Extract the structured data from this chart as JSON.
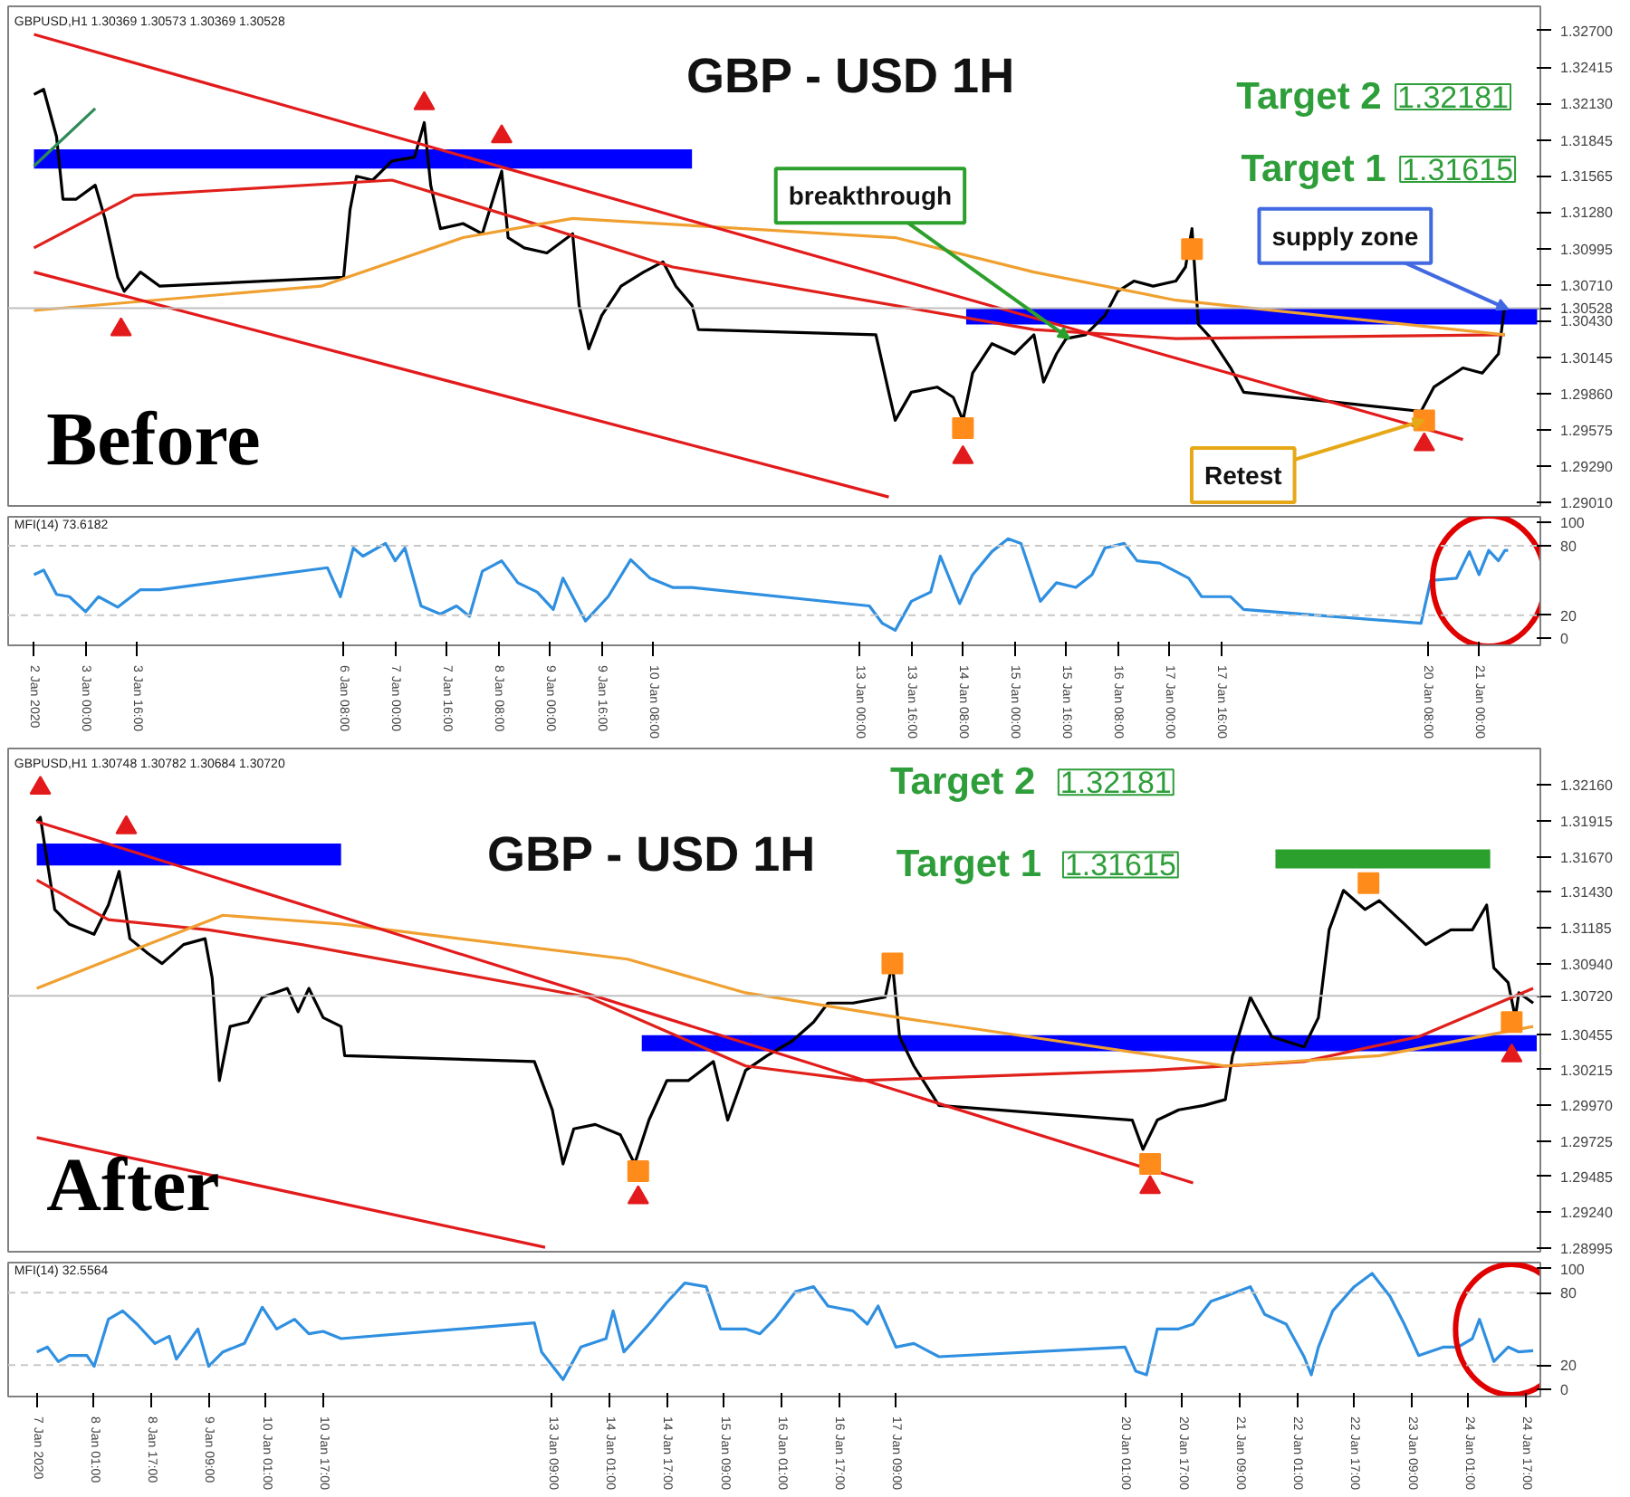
{
  "chart_data": [
    {
      "type": "line",
      "title": "GBP - USD 1H",
      "xlim": [
        "2020-01-02T00:00",
        "2020-01-21T19:00"
      ],
      "ylim": [
        1.2898,
        1.3289
      ],
      "tick_labels": "y",
      "yticks": [
        {
          "value": 1.327,
          "label": "1.32700"
        },
        {
          "value": 1.32415,
          "label": "1.32415"
        },
        {
          "value": 1.3213,
          "label": "1.32130"
        },
        {
          "value": 1.31845,
          "label": "1.31845"
        },
        {
          "value": 1.31565,
          "label": "1.31565"
        },
        {
          "value": 1.3128,
          "label": "1.31280"
        },
        {
          "value": 1.30995,
          "label": "1.30995"
        },
        {
          "value": 1.3071,
          "label": "1.30710"
        },
        {
          "value": 1.30528,
          "label": "1.30528"
        },
        {
          "value": 1.3043,
          "label": "1.30430"
        },
        {
          "value": 1.30145,
          "label": "1.30145"
        },
        {
          "value": 1.2986,
          "label": "1.29860"
        },
        {
          "value": 1.29575,
          "label": "1.29575"
        },
        {
          "value": 1.2929,
          "label": "1.29290"
        },
        {
          "value": 1.2901,
          "label": "1.29010"
        }
      ],
      "ref_lines": [
        {
          "axis": "y",
          "value": 1.30528,
          "color": "#c0c0c0"
        }
      ],
      "annotations": [
        "GBPUSD,H1 1.30369 1.30573 1.30369 1.30528",
        "Before",
        "Target 2",
        "1.32181",
        "Target 1",
        "1.31615",
        {
          "text": "breakthrough",
          "x": "2020-01-15T17:00",
          "y": 1.3029
        },
        {
          "text": "supply zone",
          "x": "2020-01-21T09:00",
          "y": 1.3052
        },
        {
          "text": "Retest",
          "x": "2020-01-20T07:00",
          "y": 1.2965
        }
      ],
      "series": [
        {
          "color": "#000000",
          "x": [
            "2020-01-02T08:00",
            "2020-01-02T11:00",
            "2020-01-02T15:00",
            "2020-01-02T17:00",
            "2020-01-02T21:00",
            "2020-01-03T03:00",
            "2020-01-03T06:00",
            "2020-01-03T10:00",
            "2020-01-03T12:00",
            "2020-01-03T17:00",
            "2020-01-03T23:00",
            "2020-01-06T08:00",
            "2020-01-06T10:00",
            "2020-01-06T12:00",
            "2020-01-06T17:00",
            "2020-01-06T23:00",
            "2020-01-07T06:00",
            "2020-01-07T09:00",
            "2020-01-07T11:00",
            "2020-01-07T14:00",
            "2020-01-07T21:00",
            "2020-01-08T03:00",
            "2020-01-08T09:00",
            "2020-01-08T11:00",
            "2020-01-08T16:00",
            "2020-01-08T23:00",
            "2020-01-09T07:00",
            "2020-01-09T09:00",
            "2020-01-09T12:00",
            "2020-01-09T16:00",
            "2020-01-09T22:00",
            "2020-01-10T05:00",
            "2020-01-10T11:00",
            "2020-01-10T15:00",
            "2020-01-10T20:00",
            "2020-01-10T22:00",
            "2020-01-13T05:00",
            "2020-01-13T09:00",
            "2020-01-13T11:00",
            "2020-01-13T16:00",
            "2020-01-14T00:00",
            "2020-01-14T05:00",
            "2020-01-14T08:00",
            "2020-01-14T11:00",
            "2020-01-14T17:00",
            "2020-01-15T00:00",
            "2020-01-15T06:00",
            "2020-01-15T09:00",
            "2020-01-15T13:00",
            "2020-01-15T16:00",
            "2020-01-15T22:00",
            "2020-01-16T04:00",
            "2020-01-16T08:00",
            "2020-01-16T13:00",
            "2020-01-16T19:00",
            "2020-01-17T02:00",
            "2020-01-17T05:00",
            "2020-01-17T07:00",
            "2020-01-17T09:00",
            "2020-01-17T13:00",
            "2020-01-17T19:00",
            "2020-01-17T23:00",
            "2020-01-20T06:00",
            "2020-01-20T10:00",
            "2020-01-20T19:00",
            "2020-01-21T01:00",
            "2020-01-21T06:00",
            "2020-01-21T08:00"
          ],
          "values": [
            1.322,
            1.3224,
            1.3187,
            1.3138,
            1.3138,
            1.3149,
            1.3123,
            1.3077,
            1.3066,
            1.3081,
            1.307,
            1.3077,
            1.313,
            1.3156,
            1.3153,
            1.3168,
            1.3171,
            1.3198,
            1.3149,
            1.3115,
            1.3119,
            1.3111,
            1.316,
            1.3108,
            1.31,
            1.3096,
            1.3111,
            1.3055,
            1.3021,
            1.3047,
            1.307,
            1.3081,
            1.3089,
            1.307,
            1.3055,
            1.3036,
            1.3032,
            1.2987,
            1.2965,
            1.2987,
            1.2991,
            1.2983,
            1.2965,
            1.3002,
            1.3025,
            1.3017,
            1.3032,
            1.2995,
            1.3017,
            1.3029,
            1.3032,
            1.3047,
            1.3066,
            1.3074,
            1.307,
            1.3074,
            1.3085,
            1.3115,
            1.304,
            1.3029,
            1.3006,
            1.2987,
            1.2972,
            1.2991,
            1.3006,
            1.3002,
            1.3017,
            1.3055
          ]
        },
        {
          "color": "#e0201b",
          "x": [
            "2020-01-02T08:00",
            "2020-01-03T15:00",
            "2020-01-06T23:00",
            "2020-01-08T14:00",
            "2020-01-10T14:00",
            "2020-01-15T06:00",
            "2020-01-17T02:00",
            "2020-01-21T08:00"
          ],
          "values": [
            1.31,
            1.3141,
            1.3153,
            1.3123,
            1.3085,
            1.3036,
            1.3029,
            1.3032
          ]
        },
        {
          "color": "#f0a030",
          "x": [
            "2020-01-02T08:00",
            "2020-01-06T01:00",
            "2020-01-07T21:00",
            "2020-01-09T07:00",
            "2020-01-13T11:00",
            "2020-01-15T06:00",
            "2020-01-17T02:00",
            "2020-01-21T08:00"
          ],
          "values": [
            1.3051,
            1.307,
            1.3108,
            1.3123,
            1.3108,
            1.3081,
            1.3059,
            1.3032
          ]
        },
        {
          "color": "#e31a1c",
          "x": [
            "2020-01-02T08:00",
            "2020-01-20T19:00"
          ],
          "values": [
            1.3267,
            1.295
          ]
        },
        {
          "color": "#e31a1c",
          "x": [
            "2020-01-02T08:00",
            "2020-01-13T09:00"
          ],
          "values": [
            1.3081,
            1.2905
          ]
        },
        {
          "color": "#2e8b57",
          "x": [
            "2020-01-02T08:00",
            "2020-01-03T03:00"
          ],
          "values": [
            1.3164,
            1.3209
          ]
        },
        {
          "color": "#0000ff",
          "x": [
            "2020-01-02T08:00",
            "2020-01-10T20:00"
          ],
          "values": [
            null,
            null
          ],
          "lower": [
            1.3162,
            1.3162
          ],
          "upper": [
            1.3177,
            1.3177
          ]
        },
        {
          "color": "#0000ff",
          "x": [
            "2020-01-14T09:00",
            "2020-01-21T18:00"
          ],
          "values": [
            null,
            null
          ],
          "lower": [
            1.304,
            1.304
          ],
          "upper": [
            1.3053,
            1.3053
          ]
        },
        {
          "type": "scatter",
          "marker": "square",
          "color": "#ff8c1a",
          "x": [
            "2020-01-14T08:00",
            "2020-01-17T07:00",
            "2020-01-20T07:00"
          ],
          "values": [
            1.2959,
            1.3099,
            1.2965
          ]
        },
        {
          "type": "scatter",
          "marker": "triangle",
          "color": "#e31a1c",
          "x": [
            "2020-01-03T11:00",
            "2020-01-14T08:00",
            "2020-01-20T07:00",
            "2020-01-07T09:00",
            "2020-01-08T09:00"
          ],
          "values": [
            1.3036,
            1.2936,
            1.2946,
            1.3213,
            1.3187
          ]
        }
      ]
    },
    {
      "type": "line",
      "xlim": [
        "2020-01-02T00:00",
        "2020-01-21T19:00"
      ],
      "ylim": [
        -6,
        105
      ],
      "yticks": [
        0,
        20,
        80,
        100
      ],
      "xticks": [
        {
          "value": "2020-01-02T08:00",
          "label": "2 Jan 2020"
        },
        {
          "value": "2020-01-03T00:00",
          "label": "3 Jan 00:00"
        },
        {
          "value": "2020-01-03T16:00",
          "label": "3 Jan 16:00"
        },
        {
          "value": "2020-01-06T08:00",
          "label": "6 Jan 08:00"
        },
        {
          "value": "2020-01-07T00:00",
          "label": "7 Jan 00:00"
        },
        {
          "value": "2020-01-07T16:00",
          "label": "7 Jan 16:00"
        },
        {
          "value": "2020-01-08T08:00",
          "label": "8 Jan 08:00"
        },
        {
          "value": "2020-01-09T00:00",
          "label": "9 Jan 00:00"
        },
        {
          "value": "2020-01-09T16:00",
          "label": "9 Jan 16:00"
        },
        {
          "value": "2020-01-10T08:00",
          "label": "10 Jan 08:00"
        },
        {
          "value": "2020-01-13T00:00",
          "label": "13 Jan 00:00"
        },
        {
          "value": "2020-01-13T16:00",
          "label": "13 Jan 16:00"
        },
        {
          "value": "2020-01-14T08:00",
          "label": "14 Jan 08:00"
        },
        {
          "value": "2020-01-15T00:00",
          "label": "15 Jan 00:00"
        },
        {
          "value": "2020-01-15T16:00",
          "label": "15 Jan 16:00"
        },
        {
          "value": "2020-01-16T08:00",
          "label": "16 Jan 08:00"
        },
        {
          "value": "2020-01-17T00:00",
          "label": "17 Jan 00:00"
        },
        {
          "value": "2020-01-17T16:00",
          "label": "17 Jan 16:00"
        },
        {
          "value": "2020-01-20T08:00",
          "label": "20 Jan 08:00"
        },
        {
          "value": "2020-01-21T00:00",
          "label": "21 Jan 00:00"
        }
      ],
      "ref_lines": [
        {
          "axis": "y",
          "value": 20,
          "color": "#c8c8c8",
          "line_style": "dashed"
        },
        {
          "axis": "y",
          "value": 80,
          "color": "#c8c8c8",
          "line_style": "dashed"
        }
      ],
      "annotations": [
        "MFI(14) 73.6182"
      ],
      "series": [
        {
          "color": "#2f8fe0",
          "x": [
            "2020-01-02T08:00",
            "2020-01-02T11:00",
            "2020-01-02T15:00",
            "2020-01-02T19:00",
            "2020-01-03T00:00",
            "2020-01-03T04:00",
            "2020-01-03T10:00",
            "2020-01-03T17:00",
            "2020-01-03T23:00",
            "2020-01-06T03:00",
            "2020-01-06T07:00",
            "2020-01-06T11:00",
            "2020-01-06T14:00",
            "2020-01-06T21:00",
            "2020-01-07T00:00",
            "2020-01-07T03:00",
            "2020-01-07T08:00",
            "2020-01-07T14:00",
            "2020-01-07T19:00",
            "2020-01-07T23:00",
            "2020-01-08T03:00",
            "2020-01-08T09:00",
            "2020-01-08T14:00",
            "2020-01-08T20:00",
            "2020-01-09T01:00",
            "2020-01-09T04:00",
            "2020-01-09T11:00",
            "2020-01-09T18:00",
            "2020-01-10T01:00",
            "2020-01-10T07:00",
            "2020-01-10T14:00",
            "2020-01-10T20:00",
            "2020-01-13T03:00",
            "2020-01-13T07:00",
            "2020-01-13T11:00",
            "2020-01-13T16:00",
            "2020-01-13T22:00",
            "2020-01-14T01:00",
            "2020-01-14T07:00",
            "2020-01-14T11:00",
            "2020-01-14T17:00",
            "2020-01-14T22:00",
            "2020-01-15T02:00",
            "2020-01-15T08:00",
            "2020-01-15T13:00",
            "2020-01-15T19:00",
            "2020-01-16T00:00",
            "2020-01-16T04:00",
            "2020-01-16T10:00",
            "2020-01-16T14:00",
            "2020-01-16T21:00",
            "2020-01-17T06:00",
            "2020-01-17T10:00",
            "2020-01-17T19:00",
            "2020-01-17T23:00",
            "2020-01-20T06:00",
            "2020-01-20T09:00",
            "2020-01-20T17:00",
            "2020-01-20T21:00",
            "2020-01-21T00:00",
            "2020-01-21T03:00",
            "2020-01-21T06:00",
            "2020-01-21T08:00",
            "2020-01-21T09:00"
          ],
          "values": [
            55,
            59,
            38,
            36,
            23,
            36,
            27,
            42,
            42,
            61,
            36,
            78,
            71,
            82,
            67,
            78,
            28,
            21,
            28,
            19,
            58,
            67,
            48,
            40,
            25,
            52,
            15,
            36,
            68,
            52,
            44,
            44,
            28,
            13,
            7,
            32,
            40,
            71,
            30,
            55,
            75,
            86,
            82,
            32,
            48,
            44,
            55,
            78,
            82,
            67,
            65,
            52,
            36,
            36,
            25,
            13,
            50,
            52,
            75,
            55,
            76,
            67,
            76,
            76
          ]
        }
      ]
    },
    {
      "type": "line",
      "title": "GBP - USD 1H",
      "xlim": [
        "2020-01-07T01:00",
        "2020-01-24T21:00"
      ],
      "ylim": [
        1.2897,
        1.3241
      ],
      "tick_labels": "y",
      "yticks": [
        {
          "value": 1.3216,
          "label": "1.32160"
        },
        {
          "value": 1.31915,
          "label": "1.31915"
        },
        {
          "value": 1.3167,
          "label": "1.31670"
        },
        {
          "value": 1.3143,
          "label": "1.31430"
        },
        {
          "value": 1.31185,
          "label": "1.31185"
        },
        {
          "value": 1.3094,
          "label": "1.30940"
        },
        {
          "value": 1.3072,
          "label": "1.30720"
        },
        {
          "value": 1.30455,
          "label": "1.30455"
        },
        {
          "value": 1.30215,
          "label": "1.30215"
        },
        {
          "value": 1.2997,
          "label": "1.29970"
        },
        {
          "value": 1.29725,
          "label": "1.29725"
        },
        {
          "value": 1.29485,
          "label": "1.29485"
        },
        {
          "value": 1.2924,
          "label": "1.29240"
        },
        {
          "value": 1.28995,
          "label": "1.28995"
        }
      ],
      "ref_lines": [
        {
          "axis": "y",
          "value": 1.3072,
          "color": "#c0c0c0"
        }
      ],
      "annotations": [
        "GBPUSD,H1 1.30748 1.30782 1.30684 1.30720",
        "After",
        "Target 2",
        "1.32181",
        "Target 1",
        "1.31615"
      ],
      "series": [
        {
          "color": "#000000",
          "x": [
            "2020-01-07T09:00",
            "2020-01-07T10:00",
            "2020-01-07T14:00",
            "2020-01-07T18:00",
            "2020-01-08T01:00",
            "2020-01-08T05:00",
            "2020-01-08T08:00",
            "2020-01-08T11:00",
            "2020-01-08T16:00",
            "2020-01-08T20:00",
            "2020-01-09T02:00",
            "2020-01-09T08:00",
            "2020-01-09T10:00",
            "2020-01-09T12:00",
            "2020-01-09T15:00",
            "2020-01-09T20:00",
            "2020-01-10T00:00",
            "2020-01-10T07:00",
            "2020-01-10T10:00",
            "2020-01-10T13:00",
            "2020-01-10T17:00",
            "2020-01-10T22:00",
            "2020-01-10T23:00",
            "2020-01-13T04:00",
            "2020-01-13T09:00",
            "2020-01-13T12:00",
            "2020-01-13T15:00",
            "2020-01-13T21:00",
            "2020-01-14T04:00",
            "2020-01-14T08:00",
            "2020-01-14T12:00",
            "2020-01-14T17:00",
            "2020-01-14T23:00",
            "2020-01-15T06:00",
            "2020-01-15T10:00",
            "2020-01-15T15:00",
            "2020-01-15T21:00",
            "2020-01-16T04:00",
            "2020-01-16T10:00",
            "2020-01-16T14:00",
            "2020-01-16T21:00",
            "2020-01-17T06:00",
            "2020-01-17T08:00",
            "2020-01-17T10:00",
            "2020-01-17T14:00",
            "2020-01-17T21:00",
            "2020-01-20T03:00",
            "2020-01-20T06:00",
            "2020-01-20T10:00",
            "2020-01-20T16:00",
            "2020-01-20T23:00",
            "2020-01-21T05:00",
            "2020-01-21T07:00",
            "2020-01-21T12:00",
            "2020-01-21T18:00",
            "2020-01-22T03:00",
            "2020-01-22T07:00",
            "2020-01-22T10:00",
            "2020-01-22T14:00",
            "2020-01-22T20:00",
            "2020-01-23T00:00",
            "2020-01-23T07:00",
            "2020-01-23T13:00",
            "2020-01-23T20:00",
            "2020-01-24T02:00",
            "2020-01-24T06:00",
            "2020-01-24T08:00",
            "2020-01-24T12:00",
            "2020-01-24T14:00",
            "2020-01-24T15:00",
            "2020-01-24T19:00"
          ],
          "values": [
            1.3191,
            1.3194,
            1.3131,
            1.3121,
            1.3114,
            1.3134,
            1.3157,
            1.3111,
            1.3101,
            1.3094,
            1.3107,
            1.3111,
            1.3084,
            1.3014,
            1.3051,
            1.3054,
            1.3071,
            1.3077,
            1.3061,
            1.3077,
            1.3057,
            1.3051,
            1.3031,
            1.3027,
            1.2994,
            1.2957,
            1.2981,
            1.2984,
            1.2977,
            1.2957,
            1.2987,
            1.3014,
            1.3014,
            1.3027,
            1.2987,
            1.3021,
            1.3031,
            1.3041,
            1.3054,
            1.3067,
            1.3067,
            1.3071,
            1.3094,
            1.3044,
            1.3024,
            1.2997,
            1.2987,
            1.2967,
            1.2987,
            1.2994,
            1.2997,
            1.3001,
            1.3031,
            1.3071,
            1.3044,
            1.3037,
            1.3057,
            1.3117,
            1.3144,
            1.3131,
            1.3137,
            1.3121,
            1.3107,
            1.3117,
            1.3117,
            1.3134,
            1.3091,
            1.3081,
            1.3057,
            1.3074,
            1.3067
          ]
        },
        {
          "color": "#e0201b",
          "x": [
            "2020-01-07T09:00",
            "2020-01-08T05:00",
            "2020-01-09T09:00",
            "2020-01-10T11:00",
            "2020-01-13T19:00",
            "2020-01-15T15:00",
            "2020-01-16T23:00",
            "2020-01-20T08:00",
            "2020-01-22T03:00",
            "2020-01-23T11:00",
            "2020-01-24T19:00"
          ],
          "values": [
            1.3151,
            1.3124,
            1.3117,
            1.3107,
            1.3071,
            1.3024,
            1.3014,
            1.3021,
            1.3027,
            1.3044,
            1.3077
          ]
        },
        {
          "color": "#f0a030",
          "x": [
            "2020-01-07T09:00",
            "2020-01-08T16:00",
            "2020-01-09T13:00",
            "2020-01-10T22:00",
            "2020-01-14T06:00",
            "2020-01-15T15:00",
            "2020-01-17T10:00",
            "2020-01-21T05:00",
            "2020-01-23T00:00",
            "2020-01-24T19:00"
          ],
          "values": [
            1.3077,
            1.3107,
            1.3127,
            1.3121,
            1.3097,
            1.3074,
            1.3057,
            1.3024,
            1.3031,
            1.3051
          ]
        },
        {
          "color": "#e31a1c",
          "x": [
            "2020-01-07T09:00",
            "2020-01-20T20:00"
          ],
          "values": [
            1.3191,
            1.2944
          ]
        },
        {
          "color": "#e31a1c",
          "x": [
            "2020-01-07T09:00",
            "2020-01-13T07:00"
          ],
          "values": [
            1.2975,
            1.29
          ]
        },
        {
          "color": "#0000ff",
          "x": [
            "2020-01-07T09:00",
            "2020-01-10T22:00"
          ],
          "values": [
            null,
            null
          ],
          "lower": [
            1.3161,
            1.3161
          ],
          "upper": [
            1.3176,
            1.3176
          ]
        },
        {
          "color": "#0000ff",
          "x": [
            "2020-01-14T10:00",
            "2020-01-24T20:00"
          ],
          "values": [
            null,
            null
          ],
          "lower": [
            1.3034,
            1.3034
          ],
          "upper": [
            1.3045,
            1.3045
          ]
        },
        {
          "color": "#2ca02c",
          "x": [
            "2020-01-21T19:00",
            "2020-01-24T07:00"
          ],
          "values": [
            null,
            null
          ],
          "lower": [
            1.3159,
            1.3159
          ],
          "upper": [
            1.3172,
            1.3172
          ]
        },
        {
          "type": "scatter",
          "marker": "square",
          "color": "#ff8c1a",
          "x": [
            "2020-01-14T09:00",
            "2020-01-17T08:00",
            "2020-01-20T08:00",
            "2020-01-22T21:00",
            "2020-01-24T13:00"
          ],
          "values": [
            1.2952,
            1.3094,
            1.2957,
            1.3149,
            1.3054
          ]
        },
        {
          "type": "scatter",
          "marker": "triangle",
          "color": "#e31a1c",
          "x": [
            "2020-01-07T10:00",
            "2020-01-08T10:00",
            "2020-01-14T09:00",
            "2020-01-20T08:00",
            "2020-01-24T13:00"
          ],
          "values": [
            1.3214,
            1.3187,
            1.2934,
            1.2941,
            1.3031
          ]
        }
      ]
    },
    {
      "type": "line",
      "xlim": [
        "2020-01-07T01:00",
        "2020-01-24T21:00"
      ],
      "ylim": [
        -6,
        105
      ],
      "yticks": [
        0,
        20,
        80,
        100
      ],
      "xticks": [
        {
          "value": "2020-01-07T09:00",
          "label": "7 Jan 2020"
        },
        {
          "value": "2020-01-08T01:00",
          "label": "8 Jan 01:00"
        },
        {
          "value": "2020-01-08T17:00",
          "label": "8 Jan 17:00"
        },
        {
          "value": "2020-01-09T09:00",
          "label": "9 Jan 09:00"
        },
        {
          "value": "2020-01-10T01:00",
          "label": "10 Jan 01:00"
        },
        {
          "value": "2020-01-10T17:00",
          "label": "10 Jan 17:00"
        },
        {
          "value": "2020-01-13T09:00",
          "label": "13 Jan 09:00"
        },
        {
          "value": "2020-01-14T01:00",
          "label": "14 Jan 01:00"
        },
        {
          "value": "2020-01-14T17:00",
          "label": "14 Jan 17:00"
        },
        {
          "value": "2020-01-15T09:00",
          "label": "15 Jan 09:00"
        },
        {
          "value": "2020-01-16T01:00",
          "label": "16 Jan 01:00"
        },
        {
          "value": "2020-01-16T17:00",
          "label": "16 Jan 17:00"
        },
        {
          "value": "2020-01-17T09:00",
          "label": "17 Jan 09:00"
        },
        {
          "value": "2020-01-20T01:00",
          "label": "20 Jan 01:00"
        },
        {
          "value": "2020-01-20T17:00",
          "label": "20 Jan 17:00"
        },
        {
          "value": "2020-01-21T09:00",
          "label": "21 Jan 09:00"
        },
        {
          "value": "2020-01-22T01:00",
          "label": "22 Jan 01:00"
        },
        {
          "value": "2020-01-22T17:00",
          "label": "22 Jan 17:00"
        },
        {
          "value": "2020-01-23T09:00",
          "label": "23 Jan 09:00"
        },
        {
          "value": "2020-01-24T01:00",
          "label": "24 Jan 01:00"
        },
        {
          "value": "2020-01-24T17:00",
          "label": "24 Jan 17:00"
        }
      ],
      "ref_lines": [
        {
          "axis": "y",
          "value": 20,
          "color": "#c8c8c8",
          "line_style": "dashed"
        },
        {
          "axis": "y",
          "value": 80,
          "color": "#c8c8c8",
          "line_style": "dashed"
        }
      ],
      "annotations": [
        "MFI(14) 32.5564"
      ],
      "series": [
        {
          "color": "#2f8fe0",
          "x": [
            "2020-01-07T09:00",
            "2020-01-07T12:00",
            "2020-01-07T15:00",
            "2020-01-07T18:00",
            "2020-01-07T23:00",
            "2020-01-08T01:00",
            "2020-01-08T05:00",
            "2020-01-08T09:00",
            "2020-01-08T13:00",
            "2020-01-08T18:00",
            "2020-01-08T22:00",
            "2020-01-09T00:00",
            "2020-01-09T06:00",
            "2020-01-09T09:00",
            "2020-01-09T13:00",
            "2020-01-09T19:00",
            "2020-01-10T00:00",
            "2020-01-10T04:00",
            "2020-01-10T09:00",
            "2020-01-10T13:00",
            "2020-01-10T17:00",
            "2020-01-10T22:00",
            "2020-01-13T04:00",
            "2020-01-13T06:00",
            "2020-01-13T12:00",
            "2020-01-13T17:00",
            "2020-01-14T00:00",
            "2020-01-14T02:00",
            "2020-01-14T05:00",
            "2020-01-14T12:00",
            "2020-01-14T17:00",
            "2020-01-14T22:00",
            "2020-01-15T04:00",
            "2020-01-15T08:00",
            "2020-01-15T15:00",
            "2020-01-15T19:00",
            "2020-01-15T23:00",
            "2020-01-16T05:00",
            "2020-01-16T10:00",
            "2020-01-16T14:00",
            "2020-01-16T21:00",
            "2020-01-17T01:00",
            "2020-01-17T04:00",
            "2020-01-17T09:00",
            "2020-01-17T14:00",
            "2020-01-17T21:00",
            "2020-01-20T01:00",
            "2020-01-20T04:00",
            "2020-01-20T07:00",
            "2020-01-20T10:00",
            "2020-01-20T16:00",
            "2020-01-20T20:00",
            "2020-01-21T01:00",
            "2020-01-21T05:00",
            "2020-01-21T12:00",
            "2020-01-21T16:00",
            "2020-01-21T22:00",
            "2020-01-22T03:00",
            "2020-01-22T05:00",
            "2020-01-22T07:00",
            "2020-01-22T11:00",
            "2020-01-22T17:00",
            "2020-01-22T22:00",
            "2020-01-23T03:00",
            "2020-01-23T07:00",
            "2020-01-23T11:00",
            "2020-01-23T18:00",
            "2020-01-23T22:00",
            "2020-01-24T02:00",
            "2020-01-24T04:00",
            "2020-01-24T08:00",
            "2020-01-24T12:00",
            "2020-01-24T15:00",
            "2020-01-24T19:00"
          ],
          "values": [
            31,
            35,
            23,
            28,
            28,
            19,
            58,
            65,
            54,
            38,
            44,
            25,
            50,
            19,
            31,
            38,
            68,
            50,
            58,
            46,
            48,
            42,
            55,
            31,
            8,
            35,
            42,
            65,
            31,
            54,
            72,
            88,
            85,
            50,
            50,
            46,
            58,
            81,
            85,
            69,
            65,
            54,
            69,
            35,
            38,
            27,
            35,
            15,
            12,
            50,
            50,
            54,
            73,
            77,
            85,
            62,
            54,
            27,
            12,
            35,
            65,
            85,
            96,
            77,
            54,
            28,
            35,
            35,
            42,
            58,
            23,
            35,
            31,
            32
          ]
        }
      ]
    }
  ]
}
